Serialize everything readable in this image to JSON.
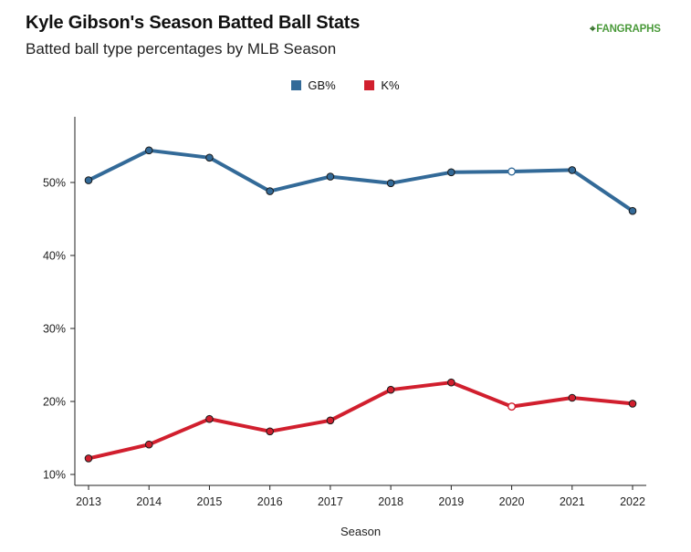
{
  "header": {
    "title": "Kyle Gibson's Season Batted Ball Stats",
    "subtitle": "Batted ball type percentages by MLB Season",
    "logo_text": "FANGRAPHS"
  },
  "chart_data": {
    "type": "line",
    "title": "Kyle Gibson's Season Batted Ball Stats",
    "subtitle": "Batted ball type percentages by MLB Season",
    "xlabel": "Season",
    "ylabel": "",
    "x": [
      "2013",
      "2014",
      "2015",
      "2016",
      "2017",
      "2018",
      "2019",
      "2020",
      "2021",
      "2022"
    ],
    "y_ticks": [
      "10%",
      "20%",
      "30%",
      "40%",
      "50%"
    ],
    "y_tick_values": [
      10,
      20,
      30,
      40,
      50
    ],
    "ylim": [
      8.5,
      59
    ],
    "grid": false,
    "legend_position": "top-center",
    "series": [
      {
        "name": "GB%",
        "color": "#336a98",
        "values": [
          50.3,
          54.4,
          53.4,
          48.8,
          50.8,
          49.9,
          51.4,
          51.5,
          51.7,
          46.1
        ]
      },
      {
        "name": "K%",
        "color": "#d11f2e",
        "values": [
          12.2,
          14.1,
          17.6,
          15.9,
          17.4,
          21.6,
          22.6,
          19.3,
          20.5,
          19.7
        ]
      }
    ],
    "highlight_index": 7
  }
}
